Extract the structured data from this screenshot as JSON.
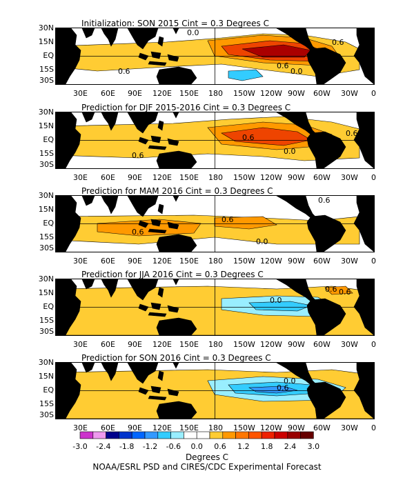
{
  "panels": [
    {
      "title": "Initialization: SON 2015   Cint = 0.3 Degrees C",
      "contour_labels": [
        "0.0",
        "0.6",
        "0.6",
        "0.6",
        "0.0"
      ]
    },
    {
      "title": "Prediction for DJF 2015-2016   Cint = 0.3 Degrees C",
      "contour_labels": [
        "0.6",
        "0.0",
        "0.6",
        "0.6"
      ]
    },
    {
      "title": "Prediction for MAM 2016   Cint = 0.3 Degrees C",
      "contour_labels": [
        "0.6",
        "0.6",
        "0.0",
        "0.6"
      ]
    },
    {
      "title": "Prediction for JJA 2016   Cint = 0.3 Degrees C",
      "contour_labels": [
        "0.0",
        "0.6",
        "0.6"
      ]
    },
    {
      "title": "Prediction for SON 2016   Cint = 0.3 Degrees C",
      "contour_labels": [
        "0.0",
        "0.6"
      ]
    }
  ],
  "lat_labels": [
    "30N",
    "15N",
    "EQ",
    "15S",
    "30S"
  ],
  "lon_labels": [
    "30E",
    "60E",
    "90E",
    "120E",
    "150E",
    "180",
    "150W",
    "120W",
    "90W",
    "60W",
    "30W",
    "0"
  ],
  "colorbar": {
    "colors": [
      "#cc33cc",
      "#ee99ee",
      "#00008b",
      "#0033cc",
      "#0066ff",
      "#3399ff",
      "#33ccff",
      "#99eeff",
      "#ffffff",
      "#ffffff",
      "#ffcc33",
      "#ff9900",
      "#ff7700",
      "#ff5500",
      "#ee2200",
      "#cc0000",
      "#990000",
      "#660000"
    ],
    "tick_labels": [
      "-3.0",
      "-2.4",
      "-1.8",
      "-1.2",
      "-0.6",
      "0.0",
      "0.6",
      "1.2",
      "1.8",
      "2.4",
      "3.0"
    ]
  },
  "units_label": "Degrees C",
  "credit": "NOAA/ESRL PSD and CIRES/CDC Experimental Forecast",
  "colors": {
    "land": "#000000",
    "warm_light": "#ffcc33",
    "warm_mid": "#ff9900",
    "warm_strong": "#ee4400",
    "warm_max": "#aa0000",
    "cool_light": "#99eeff",
    "cool_mid": "#33ccff",
    "cool_strong": "#3399ff"
  }
}
